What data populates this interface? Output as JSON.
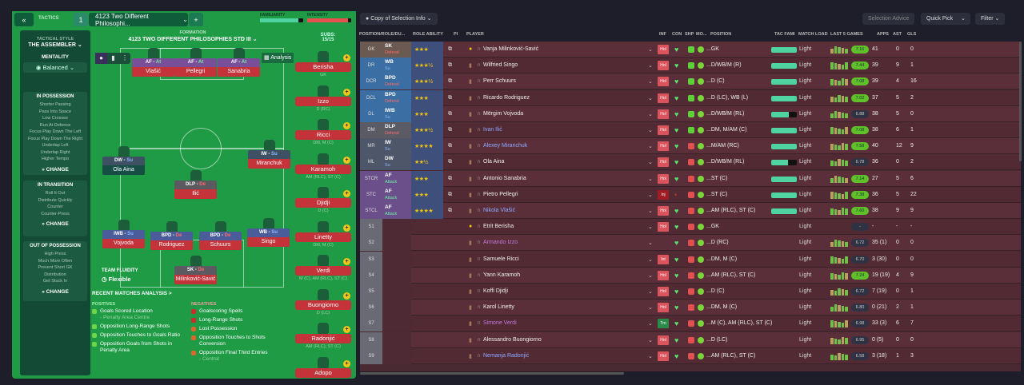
{
  "tactics": {
    "collapse_icon": "«",
    "label": "TACTICS",
    "slot": "1",
    "name": "4123 Two Different Philosophi...",
    "add": "+",
    "familiarity_label": "FAMILIARITY",
    "intensity_label": "INTENSITY",
    "familiarity": 0.88,
    "intensity": 0.93
  },
  "sidebar": {
    "style_label": "TACTICAL STYLE",
    "style": "THE ASSEMBLER",
    "mentality_label": "MENTALITY",
    "mentality": "Balanced",
    "in_possession": {
      "title": "IN POSSESSION",
      "items": [
        "Shorter Passing",
        "Pass Into Space",
        "Low Crosses",
        "Run At Defence",
        "Focus Play Down The Left",
        "Focus Play Down The Right",
        "Underlap Left",
        "Underlap Right",
        "Higher Tempo"
      ]
    },
    "in_transition": {
      "title": "IN TRANSITION",
      "items": [
        "Roll It Out",
        "Distribute Quickly",
        "Counter",
        "Counter-Press"
      ]
    },
    "out_of_possession": {
      "title": "OUT OF POSSESSION",
      "items": [
        "High Press",
        "Much More Often",
        "Prevent Short GK",
        "Distribution",
        "Get Stuck In"
      ]
    },
    "change": "CHANGE"
  },
  "formation": {
    "label": "FORMATION",
    "name": "4123 TWO DIFFERENT PHILOSOPHIES STD III",
    "analysis": "Analysis",
    "subs_label": "SUBS:",
    "subs_count": "15/15",
    "fluidity_label": "TEAM FLUIDITY",
    "fluidity": "Flexible"
  },
  "pitch_players": [
    {
      "role": "AF",
      "duty": "At",
      "name": "Vlašić",
      "cls": "af"
    },
    {
      "role": "AF",
      "duty": "At",
      "name": "Pellegri",
      "cls": "af"
    },
    {
      "role": "AF",
      "duty": "At",
      "name": "Sanabria",
      "cls": "af"
    },
    {
      "role": "DW",
      "duty": "Su",
      "name": "Ola Aina",
      "cls": "dw"
    },
    {
      "role": "IW",
      "duty": "Su",
      "name": "Miranchuk",
      "cls": "dw"
    },
    {
      "role": "DLP",
      "duty": "De",
      "name": "Ilić",
      "cls": "dm"
    },
    {
      "role": "IWB",
      "duty": "Su",
      "name": "Vojvoda",
      "cls": ""
    },
    {
      "role": "BPD",
      "duty": "De",
      "name": "Rodriguez",
      "cls": ""
    },
    {
      "role": "BPD",
      "duty": "De",
      "name": "Schuurs",
      "cls": ""
    },
    {
      "role": "WB",
      "duty": "Su",
      "name": "Singo",
      "cls": ""
    },
    {
      "role": "SK",
      "duty": "De",
      "name": "Milinković-Savić",
      "cls": "gk"
    }
  ],
  "subs": [
    {
      "name": "Berisha",
      "pos": "GK"
    },
    {
      "name": "Izzo",
      "pos": "D (RC)"
    },
    {
      "name": "Ricci",
      "pos": "DM, M (C)"
    },
    {
      "name": "Karamoh",
      "pos": "AM (RLC), ST (C)"
    },
    {
      "name": "Djidji",
      "pos": "D (C)"
    },
    {
      "name": "Linetty",
      "pos": "DM, M (C)"
    },
    {
      "name": "Verdi",
      "pos": "M (C), AM (RLC), ST (C)"
    },
    {
      "name": "Buongiorno",
      "pos": "D (LC)"
    },
    {
      "name": "Radonjić",
      "pos": "AM (RLC), ST (C)"
    },
    {
      "name": "Adopo",
      "pos": ""
    }
  ],
  "analysis": {
    "title": "RECENT MATCHES ANALYSIS >",
    "positives_label": "POSITIVES",
    "negatives_label": "NEGATIVES",
    "positives": [
      {
        "t": "Goals Scored Location",
        "s": "- Penalty Area Centre"
      },
      {
        "t": "Opposition Long-Range Shots",
        "s": ""
      },
      {
        "t": "Opposition Touches to Goals Ratio",
        "s": ""
      },
      {
        "t": "Opposition Goals from Shots in Penalty Area",
        "s": ""
      }
    ],
    "negatives": [
      {
        "t": "Goalscoring Spells",
        "s": "",
        "c": "#d02a2a"
      },
      {
        "t": "Long-Range Shots",
        "s": "",
        "c": "#d02a2a"
      },
      {
        "t": "Lost Possession",
        "s": "",
        "c": "#e0652a"
      },
      {
        "t": "Opposition Touches to Shots Conversion",
        "s": "",
        "c": "#e0652a"
      },
      {
        "t": "Opposition Final Third Entries",
        "s": "- Central",
        "c": "#e0652a"
      }
    ]
  },
  "toolbar": {
    "view": "Copy of Selection Info",
    "selection_advice": "Selection Advice",
    "quick_pick": "Quick Pick",
    "filter": "Filter"
  },
  "columns": {
    "pos": "POSITION/ROLE/DU...",
    "role_ability": "ROLE ABILITY",
    "pi": "PI",
    "player": "PLAYER",
    "inf": "INF",
    "con": "CON",
    "shp": "SHP",
    "mo": "MO...",
    "position": "POSITION",
    "tac": "TAC FAMI",
    "load": "MATCH LOAD",
    "last5": "LAST 5 GAMES",
    "apps": "APPS",
    "ast": "AST",
    "gls": "GLS"
  },
  "rows": [
    {
      "pc": "GK",
      "role": "SK",
      "duty": "Defend",
      "stars": 3,
      "name": "Vanja Milinković-Savić",
      "inf": "Hol",
      "pos": "...GK",
      "tac": 1,
      "load": "Light",
      "rating": "7.16",
      "apps": "41",
      "ast": "0",
      "gls": "0"
    },
    {
      "pc": "DR",
      "role": "WB",
      "duty": "Su",
      "stars": 3.5,
      "name": "Wilfried Singo",
      "inf": "Hol",
      "pos": "...D/WB/M (R)",
      "tac": 1,
      "load": "Light",
      "rating": "7.44",
      "apps": "39",
      "ast": "9",
      "gls": "1"
    },
    {
      "pc": "DCR",
      "role": "BPD",
      "duty": "Defend",
      "stars": 3.5,
      "name": "Perr Schuurs",
      "inf": "Hol",
      "pos": "...D (C)",
      "tac": 1,
      "load": "Light",
      "rating": "7.08",
      "apps": "39",
      "ast": "4",
      "gls": "16"
    },
    {
      "pc": "DCL",
      "role": "BPD",
      "duty": "Defend",
      "stars": 3,
      "name": "Ricardo Rodriguez",
      "inf": "Hol",
      "pos": "...D (LC), WB (L)",
      "tac": 1,
      "load": "Light",
      "rating": "7.02",
      "apps": "37",
      "ast": "5",
      "gls": "2"
    },
    {
      "pc": "DL",
      "role": "IWB",
      "duty": "Su",
      "stars": 3,
      "name": "Mërgim Vojvoda",
      "inf": "Hol",
      "pos": "...D/WB/M (RL)",
      "tac": 0.7,
      "load": "Light",
      "rating": "6.88",
      "apps": "38",
      "ast": "5",
      "gls": "0"
    },
    {
      "pc": "DM",
      "role": "DLP",
      "duty": "Defend",
      "stars": 3.5,
      "name": "Ivan Ilić",
      "inf": "Hol",
      "pos": "...DM, M/AM (C)",
      "tac": 1,
      "load": "Light",
      "rating": "7.08",
      "apps": "38",
      "ast": "6",
      "gls": "1"
    },
    {
      "pc": "MR",
      "role": "IW",
      "duty": "Su",
      "stars": 4,
      "name": "Alexey Miranchuk",
      "inf": "Hol",
      "pos": "...M/AM (RC)",
      "tac": 1,
      "load": "Light",
      "rating": "7.58",
      "apps": "40",
      "ast": "12",
      "gls": "9"
    },
    {
      "pc": "ML",
      "role": "DW",
      "duty": "Su",
      "stars": 2.5,
      "name": "Ola Aina",
      "inf": "Hol",
      "pos": "...D/WB/M (RL)",
      "tac": 0.65,
      "load": "Light",
      "rating": "6.78",
      "apps": "36",
      "ast": "0",
      "gls": "2"
    },
    {
      "pc": "STCR",
      "role": "AF",
      "duty": "Attack",
      "stars": 3,
      "name": "Antonio Sanabria",
      "inf": "Hol",
      "pos": "...ST (C)",
      "tac": 1,
      "load": "Light",
      "rating": "7.14",
      "apps": "27",
      "ast": "5",
      "gls": "6"
    },
    {
      "pc": "STC",
      "role": "AF",
      "duty": "Attack",
      "stars": 3,
      "name": "Pietro Pellegri",
      "inf": "Inj",
      "pos": "...ST (C)",
      "tac": 1,
      "load": "Light",
      "rating": "7.38",
      "apps": "36",
      "ast": "5",
      "gls": "22"
    },
    {
      "pc": "STCL",
      "role": "AF",
      "duty": "Attack",
      "stars": 4,
      "name": "Nikola Vlašić",
      "inf": "Hol",
      "pos": "...AM (RLC), ST (C)",
      "tac": 1,
      "load": "Light",
      "rating": "7.60",
      "apps": "38",
      "ast": "9",
      "gls": "9"
    },
    {
      "pc": "S1",
      "name": "Etrit Berisha",
      "inf": "Hol",
      "pos": "...GK",
      "load": "Light",
      "rating": "-",
      "apps": "-",
      "ast": "-",
      "gls": "-"
    },
    {
      "pc": "S2",
      "name": "Armando Izzo",
      "inf": "",
      "pos": "...D (RC)",
      "load": "Light",
      "rating": "6.72",
      "apps": "35 (1)",
      "ast": "0",
      "gls": "0"
    },
    {
      "pc": "S3",
      "name": "Samuele Ricci",
      "inf": "Int",
      "pos": "...DM, M (C)",
      "load": "Light",
      "rating": "6.70",
      "apps": "3 (30)",
      "ast": "0",
      "gls": "0"
    },
    {
      "pc": "S4",
      "name": "Yann Karamoh",
      "inf": "Hol",
      "pos": "...AM (RLC), ST (C)",
      "load": "Light",
      "rating": "7.24",
      "apps": "19 (19)",
      "ast": "4",
      "gls": "9"
    },
    {
      "pc": "S5",
      "name": "Koffi Djidji",
      "inf": "Hol",
      "pos": "...D (C)",
      "load": "Light",
      "rating": "6.72",
      "apps": "7 (19)",
      "ast": "0",
      "gls": "1"
    },
    {
      "pc": "S6",
      "name": "Karol Linetty",
      "inf": "Hol",
      "pos": "...DM, M (C)",
      "load": "Light",
      "rating": "6.80",
      "apps": "0 (21)",
      "ast": "2",
      "gls": "1"
    },
    {
      "pc": "S7",
      "name": "Simone Verdi",
      "inf": "Trn",
      "pos": "...M (C), AM (RLC), ST (C)",
      "load": "Light",
      "rating": "6.98",
      "apps": "33 (3)",
      "ast": "6",
      "gls": "7"
    },
    {
      "pc": "S8",
      "name": "Alessandro Buongiorno",
      "inf": "Hol",
      "pos": "...D (LC)",
      "load": "Light",
      "rating": "6.95",
      "apps": "0 (5)",
      "ast": "0",
      "gls": "0"
    },
    {
      "pc": "S9",
      "name": "Nemanja Radonjić",
      "inf": "Hol",
      "pos": "...AM (RLC), ST (C)",
      "load": "Light",
      "rating": "6.58",
      "apps": "3 (18)",
      "ast": "1",
      "gls": "3"
    }
  ],
  "colors": {
    "pitch": "#1f9a45",
    "row": "#5a2f3a",
    "accent_green": "#5fd03a",
    "injury_red": "#c4323a"
  }
}
